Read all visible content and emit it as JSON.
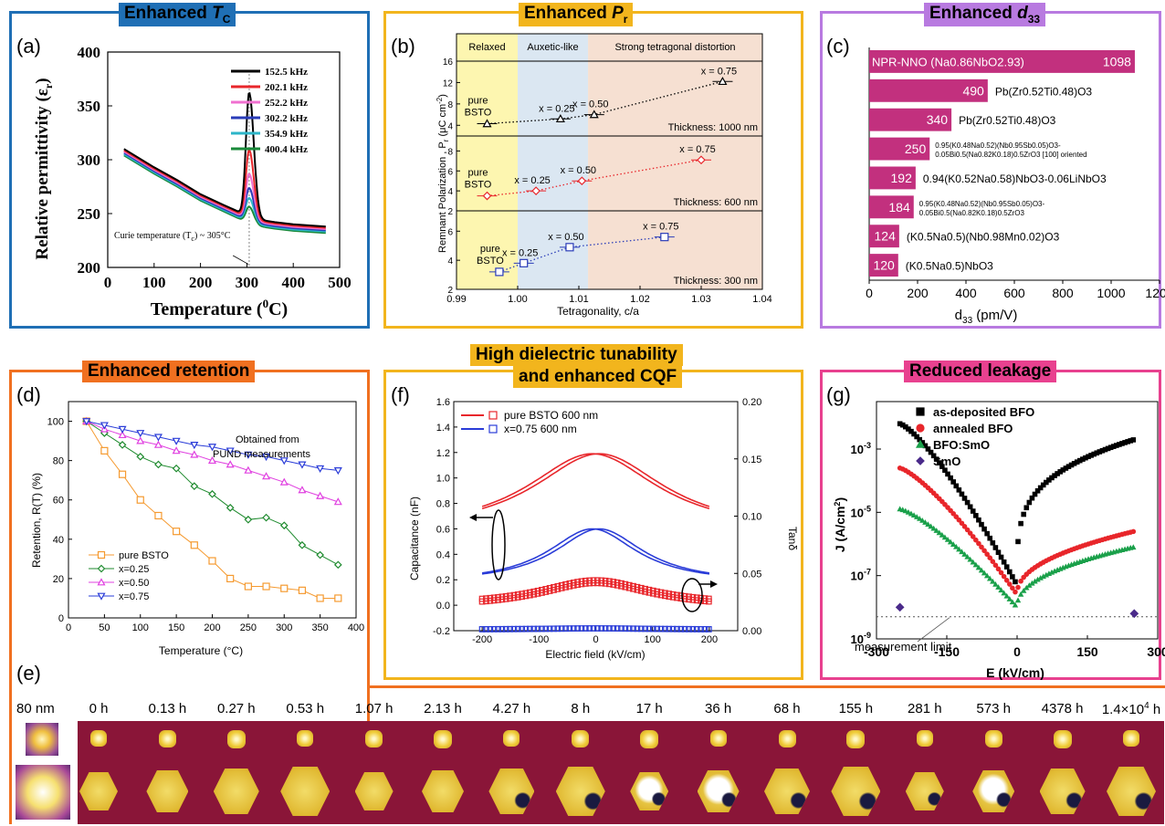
{
  "panels": {
    "a": {
      "label": "(a)",
      "title_pre": "Enhanced ",
      "title_sym": "T",
      "title_sub": "C"
    },
    "b": {
      "label": "(b)",
      "title_pre": "Enhanced ",
      "title_sym": "P",
      "title_sub": "r"
    },
    "c": {
      "label": "(c)",
      "title_pre": "Enhanced ",
      "title_sym": "d",
      "title_sub": "33"
    },
    "d": {
      "label": "(d)",
      "title": "Enhanced retention"
    },
    "e": {
      "label": "(e)"
    },
    "f": {
      "label": "(f)",
      "title_line1": "High dielectric tunability",
      "title_line2": "and enhanced CQF"
    },
    "g": {
      "label": "(g)",
      "title": "Reduced leakage"
    }
  },
  "colors": {
    "blue_border": "#1f6fb5",
    "yellow_border": "#f2b51d",
    "purple_border": "#b87ae0",
    "orange_border": "#f07020",
    "pink_border": "#e8418f",
    "magenta_bar": "#c2307e",
    "pfm_background": "#8a1538",
    "pfm_domain": "#e8c030"
  },
  "chart_data": [
    {
      "id": "a",
      "type": "line",
      "xlabel_pre": "Temperature (",
      "xlabel_sup": "0",
      "xlabel_post": "C)",
      "ylabel": "Relative permittivity (ε",
      "ylabel_sub": "r",
      "ylabel_post": ")",
      "xlim": [
        0,
        500
      ],
      "ylim": [
        200,
        400
      ],
      "xticks": [
        "0",
        "100",
        "200",
        "300",
        "400",
        "500"
      ],
      "yticks": [
        "200",
        "250",
        "300",
        "350",
        "400"
      ],
      "annotation": "Curie temperature (T",
      "annotation_sub": "c",
      "annotation_post": ") ~ 305°C",
      "series": [
        {
          "name": "152.5 kHz",
          "color": "#000000",
          "peak": 365
        },
        {
          "name": "202.1 kHz",
          "color": "#e8262b",
          "peak": 313
        },
        {
          "name": "252.2 kHz",
          "color": "#f070d0",
          "peak": 292
        },
        {
          "name": "302.2 kHz",
          "color": "#2a3cb8",
          "peak": 280
        },
        {
          "name": "354.9 kHz",
          "color": "#2db5c8",
          "peak": 272
        },
        {
          "name": "400.4 kHz",
          "color": "#1a8a3a",
          "peak": 265
        }
      ],
      "common_curve": {
        "x": [
          35,
          100,
          150,
          200,
          250,
          280,
          300,
          330,
          360,
          400,
          470
        ],
        "y": [
          310,
          293,
          281,
          268,
          258,
          252,
          248,
          244,
          242,
          240,
          238
        ]
      }
    },
    {
      "id": "b",
      "type": "scatter",
      "regions": [
        "Relaxed",
        "Auxetic-like",
        "Strong tetragonal distortion"
      ],
      "region_bounds": [
        0.99,
        1.0,
        1.0115,
        1.04
      ],
      "xlabel": "Tetragonality, c/a",
      "xlim": [
        0.99,
        1.04
      ],
      "xticks": [
        "0.99",
        "1.00",
        "1.01",
        "1.02",
        "1.03",
        "1.04"
      ],
      "ylabel": "Remnant Polarization , P",
      "ylabel_sub": "r",
      "ylabel_post": " (μC cm",
      "ylabel_sup": "-2",
      "ylabel_end": ")",
      "subplots": [
        {
          "thickness": "Thickness: 1000 nm",
          "color": "#000000",
          "marker": "triangle",
          "ylim": [
            2,
            16
          ],
          "yticks": [
            "4",
            "8",
            "12",
            "16"
          ],
          "x": [
            0.995,
            1.007,
            1.0125,
            1.0335
          ],
          "y": [
            4.3,
            5.2,
            6.0,
            12.2
          ],
          "labels": [
            "pure BSTO",
            "x = 0.25",
            "x = 0.50",
            "x = 0.75"
          ]
        },
        {
          "thickness": "Thickness: 600 nm",
          "color": "#e8262b",
          "marker": "diamond",
          "ylim": [
            2,
            9.5
          ],
          "yticks": [
            "2",
            "4",
            "6",
            "8"
          ],
          "x": [
            0.995,
            1.003,
            1.0105,
            1.03
          ],
          "y": [
            3.5,
            4.0,
            5.0,
            7.1
          ],
          "labels": [
            "pure BSTO",
            "x = 0.25",
            "x = 0.50",
            "x = 0.75"
          ]
        },
        {
          "thickness": "Thickness: 300 nm",
          "color": "#2a3cb8",
          "marker": "square",
          "ylim": [
            2,
            7.4
          ],
          "yticks": [
            "2",
            "4",
            "6"
          ],
          "x": [
            0.997,
            1.001,
            1.0085,
            1.024
          ],
          "y": [
            3.2,
            3.8,
            4.9,
            5.6
          ],
          "labels": [
            "pure BSTO",
            "x = 0.25",
            "x = 0.50",
            "x = 0.75"
          ]
        }
      ]
    },
    {
      "id": "c",
      "type": "bar",
      "xlabel": "d",
      "xlabel_sub": "33",
      "xlabel_post": " (pm/V)",
      "xlim": [
        0,
        1200
      ],
      "xticks": [
        "0",
        "200",
        "400",
        "600",
        "800",
        "1000",
        "1200"
      ],
      "bars": [
        {
          "value": 1098,
          "value_label": "1098",
          "material": "NPR-NNO (Na0.86NbO2.93)"
        },
        {
          "value": 490,
          "value_label": "490",
          "material": "Pb(Zr0.52Ti0.48)O3"
        },
        {
          "value": 340,
          "value_label": "340",
          "material": "Pb(Zr0.52Ti0.48)O3"
        },
        {
          "value": 250,
          "value_label": "250",
          "material": "0.95(K0.48Na0.52)(Nb0.95Sb0.05)O3-0.05Bi0.5(Na0.82K0.18)0.5ZrO3 [100] oriented"
        },
        {
          "value": 192,
          "value_label": "192",
          "material": "0.94(K0.52Na0.58)NbO3-0.06LiNbO3"
        },
        {
          "value": 184,
          "value_label": "184",
          "material": "0.95(K0.48Na0.52)(Nb0.95Sb0.05)O3-0.05Bi0.5(Na0.82K0.18)0.5ZrO3"
        },
        {
          "value": 124,
          "value_label": "124",
          "material": "(K0.5Na0.5)(Nb0.98Mn0.02)O3"
        },
        {
          "value": 120,
          "value_label": "120",
          "material": "(K0.5Na0.5)NbO3"
        }
      ]
    },
    {
      "id": "d",
      "type": "line",
      "xlabel": "Temperature (°C)",
      "ylabel": "Retention, R(T) (%)",
      "xlim": [
        0,
        400
      ],
      "ylim": [
        0,
        110
      ],
      "xticks": [
        "0",
        "50",
        "100",
        "150",
        "200",
        "250",
        "300",
        "350",
        "400"
      ],
      "yticks": [
        "0",
        "20",
        "40",
        "60",
        "80",
        "100"
      ],
      "annotation_line1": "Obtained from",
      "annotation_line2": "PUND measurements",
      "x": [
        25,
        50,
        75,
        100,
        125,
        150,
        175,
        200,
        225,
        250,
        275,
        300,
        325,
        350,
        375
      ],
      "series": [
        {
          "name": "pure BSTO",
          "color": "#f59a30",
          "marker": "square",
          "values": [
            100,
            85,
            73,
            60,
            52,
            44,
            37,
            29,
            20,
            16,
            16,
            15,
            14,
            10,
            10
          ]
        },
        {
          "name": "x=0.25",
          "color": "#1e8a2e",
          "marker": "diamond",
          "values": [
            100,
            94,
            88,
            82,
            78,
            76,
            67,
            63,
            56,
            50,
            51,
            47,
            37,
            32,
            27
          ]
        },
        {
          "name": "x=0.50",
          "color": "#e040e0",
          "marker": "triangle-up",
          "values": [
            100,
            96,
            93,
            90,
            88,
            85,
            83,
            80,
            78,
            75,
            72,
            69,
            65,
            62,
            59
          ]
        },
        {
          "name": "x=0.75",
          "color": "#2a3cd8",
          "marker": "triangle-down",
          "values": [
            100,
            98,
            96,
            94,
            92,
            90,
            88,
            87,
            85,
            83,
            82,
            80,
            78,
            76,
            75
          ]
        }
      ]
    },
    {
      "id": "f",
      "type": "line",
      "xlabel": "Electric field (kV/cm)",
      "ylabel": "Capacitance (nF)",
      "y2label": "Tanδ",
      "xlim": [
        -250,
        250
      ],
      "ylim": [
        -0.2,
        1.6
      ],
      "y2lim": [
        0,
        0.2
      ],
      "xticks": [
        "-200",
        "-100",
        "0",
        "100",
        "200"
      ],
      "yticks": [
        "-0.2",
        "0.0",
        "0.2",
        "0.4",
        "0.6",
        "0.8",
        "1.0",
        "1.2",
        "1.4",
        "1.6"
      ],
      "y2ticks": [
        "0.00",
        "0.05",
        "0.10",
        "0.15",
        "0.20"
      ],
      "series": [
        {
          "name": "pure BSTO 600 nm",
          "color": "#e8262b",
          "cap_min": 0.56,
          "cap_max": 1.19,
          "tan_min": 0.022,
          "tan_max": 0.044
        },
        {
          "name": "x=0.75 600 nm",
          "color": "#2a3cd8",
          "cap_min": 0.17,
          "cap_max": 0.6,
          "tan_min": 0.001,
          "tan_max": 0.002
        }
      ]
    },
    {
      "id": "g",
      "type": "scatter",
      "xlabel": "E (kV/cm)",
      "ylabel": "J (A/cm",
      "ylabel_sup": "2",
      "ylabel_post": ")",
      "xlim": [
        -300,
        300
      ],
      "ylim_log10": [
        -9,
        -1.5
      ],
      "xticks": [
        "-300",
        "-150",
        "0",
        "150",
        "300"
      ],
      "yticks": [
        {
          "base": "10",
          "exp": "-3"
        },
        {
          "base": "10",
          "exp": "-5"
        },
        {
          "base": "10",
          "exp": "-7"
        },
        {
          "base": "10",
          "exp": "-9"
        }
      ],
      "annotation": "measurement limit",
      "limit_log10": -8.3,
      "series": [
        {
          "name": "as-deposited BFO",
          "color": "#000000",
          "marker": "square",
          "neg_start": -2.2,
          "pos_end": -2.7,
          "min": -7.3
        },
        {
          "name": "annealed BFO",
          "color": "#e8262b",
          "marker": "circle",
          "neg_start": -3.6,
          "pos_end": -5.6,
          "min": -7.6
        },
        {
          "name": "BFO:SmO",
          "color": "#1aa04a",
          "marker": "triangle",
          "neg_start": -4.9,
          "pos_end": -6.1,
          "min": -8.0
        },
        {
          "name": "SmO",
          "color": "#4a2a8a",
          "marker": "diamond",
          "points_x": [
            -250,
            250
          ],
          "points_y": [
            -8.0,
            -8.2
          ]
        }
      ]
    }
  ],
  "pfm": {
    "scale_label": "80 nm",
    "times": [
      "0 h",
      "0.13 h",
      "0.27 h",
      "0.53 h",
      "1.07 h",
      "2.13 h",
      "4.27 h",
      "8 h",
      "17 h",
      "36 h",
      "68 h",
      "155 h",
      "281 h",
      "573 h",
      "4378 h"
    ],
    "last_time_pre": "1.4×10",
    "last_time_sup": "4",
    "last_time_post": " h"
  }
}
